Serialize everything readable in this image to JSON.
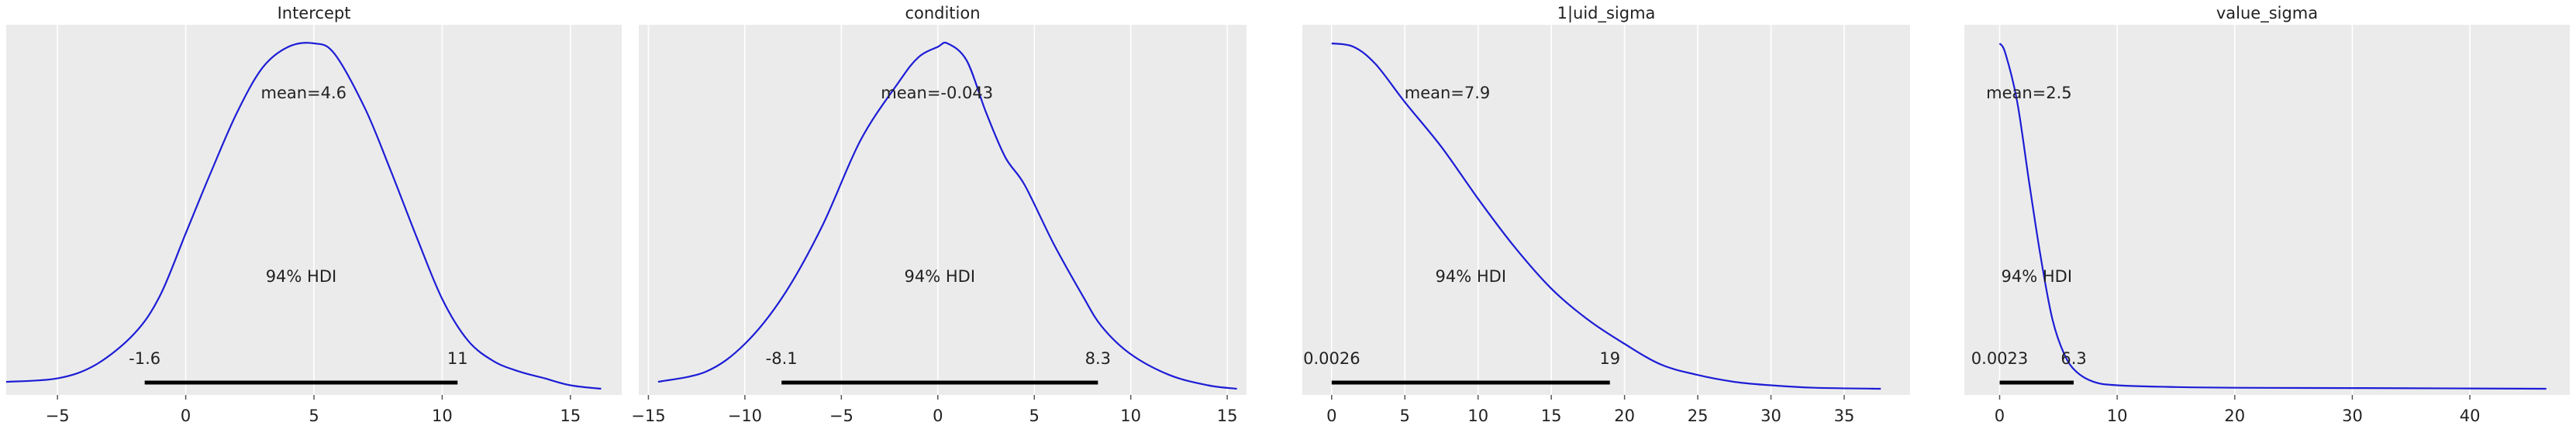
{
  "figure": {
    "kind": "posterior density panels"
  },
  "chart_data": [
    {
      "type": "area",
      "title": "Intercept",
      "xlim": [
        -7,
        17
      ],
      "ticks": [
        -5,
        0,
        5,
        10,
        15
      ],
      "tick_labels": [
        "−5",
        "0",
        "5",
        "10",
        "15"
      ],
      "curve": [
        [
          -7,
          0.02
        ],
        [
          -5,
          0.03
        ],
        [
          -3.5,
          0.07
        ],
        [
          -2,
          0.16
        ],
        [
          -1,
          0.27
        ],
        [
          0,
          0.45
        ],
        [
          1,
          0.63
        ],
        [
          2,
          0.8
        ],
        [
          3,
          0.93
        ],
        [
          4,
          0.99
        ],
        [
          5,
          1.0
        ],
        [
          5.8,
          0.97
        ],
        [
          7,
          0.81
        ],
        [
          8,
          0.63
        ],
        [
          9,
          0.44
        ],
        [
          10,
          0.26
        ],
        [
          11,
          0.14
        ],
        [
          12,
          0.08
        ],
        [
          13,
          0.05
        ],
        [
          14,
          0.03
        ],
        [
          15,
          0.01
        ],
        [
          16.2,
          0.0
        ]
      ],
      "mean": 4.6,
      "mean_label": "mean=4.6",
      "hdi": [
        -1.6,
        10.6
      ],
      "hdi_label": "94% HDI",
      "hdi_low_label": "-1.6",
      "hdi_high_label": "11"
    },
    {
      "type": "area",
      "title": "condition",
      "xlim": [
        -15.5,
        16
      ],
      "ticks": [
        -15,
        -10,
        -5,
        0,
        5,
        10,
        15
      ],
      "tick_labels": [
        "−15",
        "−10",
        "−5",
        "0",
        "5",
        "10",
        "15"
      ],
      "curve": [
        [
          -14.5,
          0.02
        ],
        [
          -12,
          0.05
        ],
        [
          -10,
          0.13
        ],
        [
          -8,
          0.27
        ],
        [
          -6,
          0.47
        ],
        [
          -4,
          0.72
        ],
        [
          -2,
          0.89
        ],
        [
          -1,
          0.96
        ],
        [
          0,
          0.99
        ],
        [
          0.5,
          1.0
        ],
        [
          1.5,
          0.95
        ],
        [
          2.5,
          0.8
        ],
        [
          3.5,
          0.67
        ],
        [
          4.5,
          0.59
        ],
        [
          6,
          0.42
        ],
        [
          7.5,
          0.27
        ],
        [
          8.5,
          0.18
        ],
        [
          10,
          0.1
        ],
        [
          12,
          0.04
        ],
        [
          14,
          0.01
        ],
        [
          15.5,
          0.0
        ]
      ],
      "mean": -0.043,
      "mean_label": "mean=-0.043",
      "hdi": [
        -8.1,
        8.3
      ],
      "hdi_label": "94% HDI",
      "hdi_low_label": "-8.1",
      "hdi_high_label": "8.3"
    },
    {
      "type": "area",
      "title": "1|uid_sigma",
      "xlim": [
        -2,
        39.5
      ],
      "ticks": [
        0,
        5,
        10,
        15,
        20,
        25,
        30,
        35
      ],
      "tick_labels": [
        "0",
        "5",
        "10",
        "15",
        "20",
        "25",
        "30",
        "35"
      ],
      "curve": [
        [
          0,
          1.0
        ],
        [
          1.5,
          0.99
        ],
        [
          3,
          0.94
        ],
        [
          5,
          0.83
        ],
        [
          7.5,
          0.7
        ],
        [
          10,
          0.55
        ],
        [
          12.5,
          0.41
        ],
        [
          15,
          0.29
        ],
        [
          17.5,
          0.2
        ],
        [
          20,
          0.13
        ],
        [
          22.5,
          0.07
        ],
        [
          25,
          0.04
        ],
        [
          27.5,
          0.02
        ],
        [
          30,
          0.01
        ],
        [
          33,
          0.003
        ],
        [
          37.5,
          0.0
        ]
      ],
      "mean": 7.9,
      "mean_label": "mean=7.9",
      "hdi": [
        0.0026,
        19
      ],
      "hdi_label": "94% HDI",
      "hdi_low_label": "0.0026",
      "hdi_high_label": "19"
    },
    {
      "type": "area",
      "title": "value_sigma",
      "xlim": [
        -3,
        48.5
      ],
      "ticks": [
        0,
        10,
        20,
        30,
        40
      ],
      "tick_labels": [
        "0",
        "10",
        "20",
        "30",
        "40"
      ],
      "curve": [
        [
          0,
          1.0
        ],
        [
          0.5,
          0.97
        ],
        [
          1.5,
          0.83
        ],
        [
          2.5,
          0.6
        ],
        [
          3.5,
          0.38
        ],
        [
          4.5,
          0.2
        ],
        [
          5.5,
          0.1
        ],
        [
          6.5,
          0.05
        ],
        [
          8,
          0.02
        ],
        [
          10,
          0.01
        ],
        [
          15,
          0.005
        ],
        [
          20,
          0.003
        ],
        [
          30,
          0.002
        ],
        [
          40,
          0.001
        ],
        [
          46.5,
          0.0
        ]
      ],
      "mean": 2.5,
      "mean_label": "mean=2.5",
      "hdi": [
        0.0023,
        6.3
      ],
      "hdi_label": "94% HDI",
      "hdi_low_label": "0.0023",
      "hdi_high_label": "6.3"
    }
  ]
}
